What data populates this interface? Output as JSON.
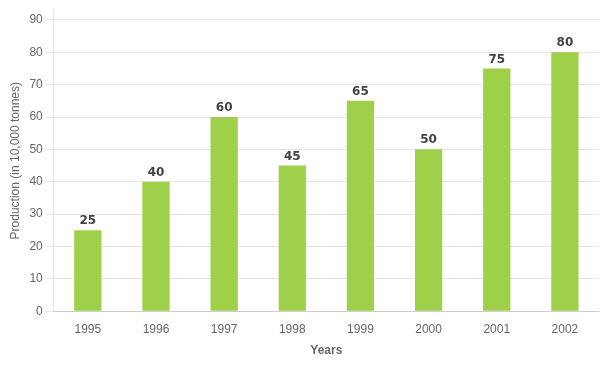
{
  "chart_data": {
    "type": "bar",
    "categories": [
      "1995",
      "1996",
      "1997",
      "1998",
      "1999",
      "2000",
      "2001",
      "2002"
    ],
    "values": [
      25,
      40,
      60,
      45,
      65,
      50,
      75,
      80
    ],
    "color": "#9ED04A",
    "xlabel": "Years",
    "ylabel": "Production (in 10,000 tonnes)",
    "ylim": [
      0,
      93
    ],
    "yticks": [
      0,
      10,
      20,
      30,
      40,
      50,
      60,
      70,
      80,
      90
    ],
    "grid": true,
    "data_labels": true
  }
}
